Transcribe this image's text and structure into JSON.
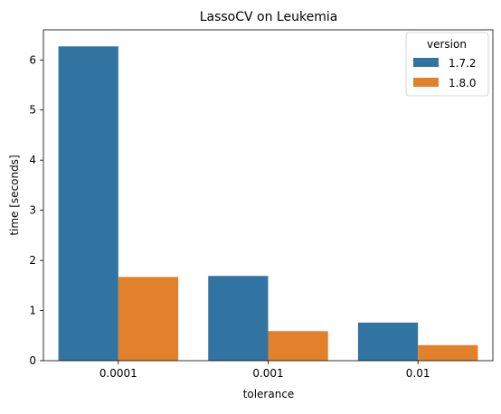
{
  "chart_data": {
    "type": "bar",
    "title": "LassoCV on Leukemia",
    "xlabel": "tolerance",
    "ylabel": "time [seconds]",
    "categories": [
      "0.0001",
      "0.001",
      "0.01"
    ],
    "ylim": [
      0,
      6.6
    ],
    "yticks": [
      0,
      1,
      2,
      3,
      4,
      5,
      6
    ],
    "grid": false,
    "legend": {
      "title": "version",
      "placement": "top-right"
    },
    "series": [
      {
        "name": "1.7.2",
        "color": "#3274a1",
        "values": [
          6.27,
          1.69,
          0.76
        ]
      },
      {
        "name": "1.8.0",
        "color": "#e1812c",
        "values": [
          1.67,
          0.59,
          0.31
        ]
      }
    ]
  }
}
